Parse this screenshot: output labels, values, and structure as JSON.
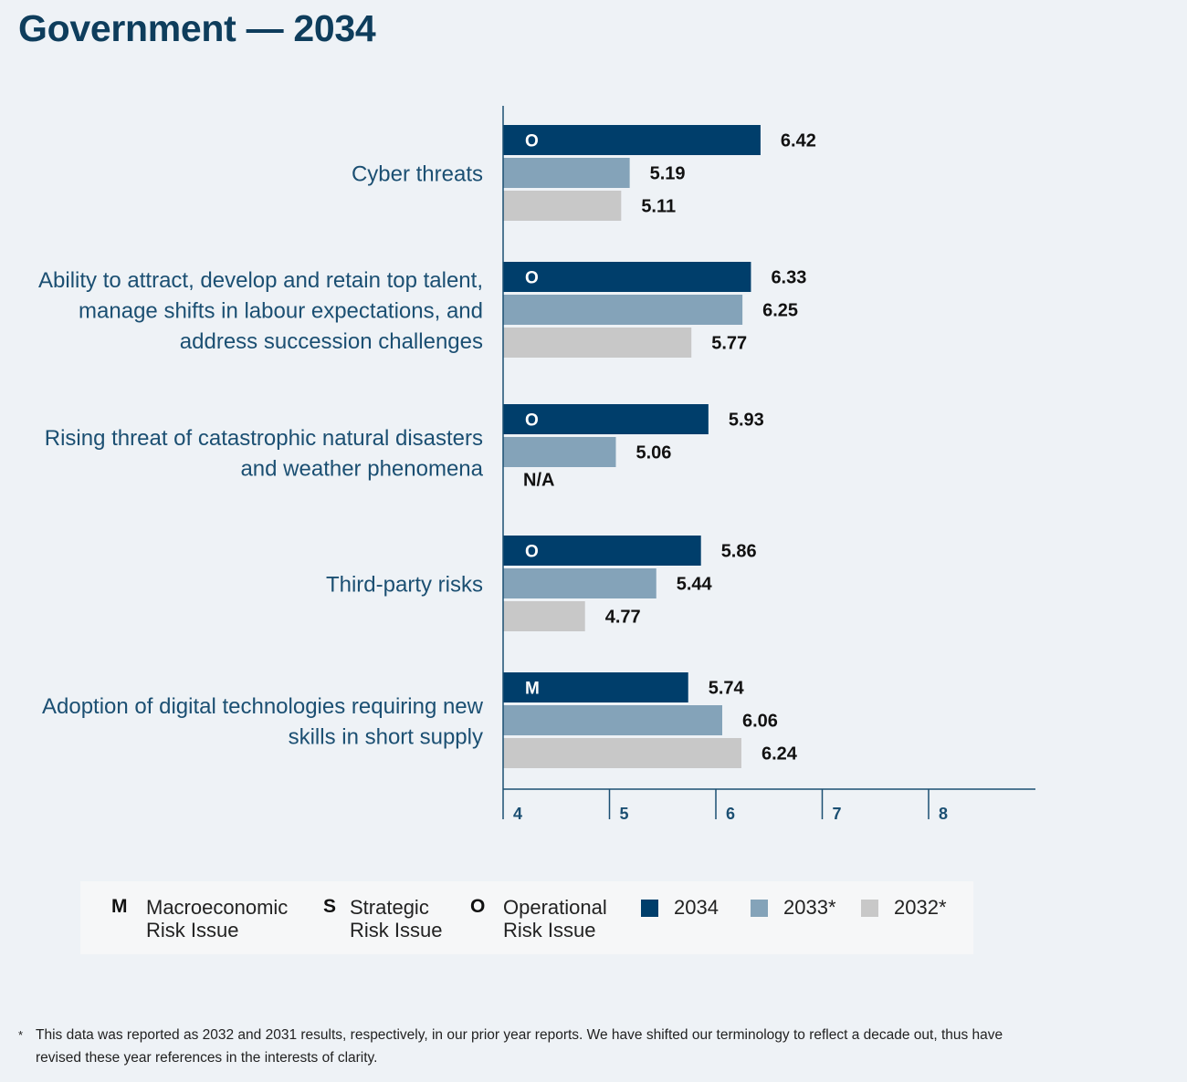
{
  "page_title": "Government — 2034",
  "chart_data": {
    "type": "bar",
    "orientation": "horizontal",
    "categories": [
      [
        "Cyber threats"
      ],
      [
        "Ability to attract, develop and retain top talent,",
        "manage shifts in labour expectations, and",
        "address succession challenges"
      ],
      [
        "Rising threat of catastrophic natural disasters",
        "and weather phenomena"
      ],
      [
        "Third-party risks"
      ],
      [
        "Adoption of digital technologies requiring new",
        "skills in short supply"
      ]
    ],
    "risk_codes": [
      "O",
      "O",
      "O",
      "O",
      "M"
    ],
    "series": [
      {
        "name": "2034",
        "values": [
          6.42,
          6.33,
          5.93,
          5.86,
          5.74
        ],
        "color": "#003e6b"
      },
      {
        "name": "2033*",
        "values": [
          5.19,
          6.25,
          5.06,
          5.44,
          6.06
        ],
        "color": "#84a3b9"
      },
      {
        "name": "2032*",
        "values": [
          5.11,
          5.77,
          null,
          4.77,
          6.24
        ],
        "color": "#c8c8c8"
      }
    ],
    "value_labels": [
      [
        "6.42",
        "5.19",
        "5.11"
      ],
      [
        "6.33",
        "6.25",
        "5.77"
      ],
      [
        "5.93",
        "5.06",
        "N/A"
      ],
      [
        "5.86",
        "5.44",
        "4.77"
      ],
      [
        "5.74",
        "6.06",
        "6.24"
      ]
    ],
    "x_ticks": [
      "4",
      "5",
      "6",
      "7",
      "8"
    ],
    "xlim": [
      4,
      9
    ]
  },
  "legend": {
    "risk_types": [
      {
        "key": "M",
        "line1": "Macroeconomic",
        "line2": "Risk Issue"
      },
      {
        "key": "S",
        "line1": "Strategic",
        "line2": "Risk Issue"
      },
      {
        "key": "O",
        "line1": "Operational",
        "line2": "Risk Issue"
      }
    ],
    "years": [
      {
        "label": "2034",
        "color": "#003e6b"
      },
      {
        "label": "2033*",
        "color": "#84a3b9"
      },
      {
        "label": "2032*",
        "color": "#c8c8c8"
      }
    ]
  },
  "footnote": {
    "marker": "*",
    "text": "This data was reported as 2032 and 2031 results, respectively, in our prior year reports. We have shifted our terminology to reflect a decade out, thus have revised these year references in the interests of clarity."
  }
}
